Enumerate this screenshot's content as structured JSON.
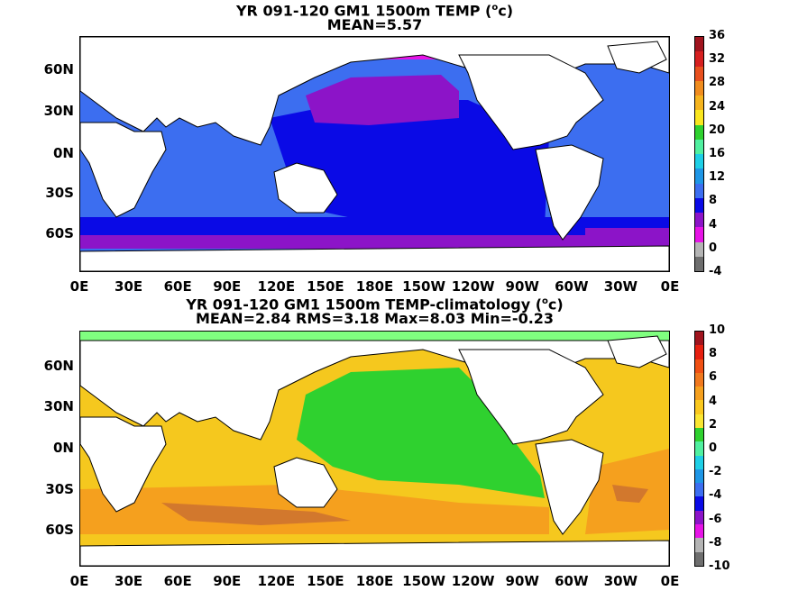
{
  "panels": [
    {
      "title_line1_prefix": "YR 091-120 GM1 1500m TEMP (",
      "title_unit_sup": "o",
      "title_unit_rest": "c)",
      "title_line2": "MEAN=5.57",
      "colorbar_labels": [
        "36",
        "32",
        "28",
        "24",
        "20",
        "16",
        "12",
        "8",
        "4",
        "0",
        "-4"
      ],
      "colorbar_colors": [
        "#a0141e",
        "#d62020",
        "#e8501e",
        "#f08c1e",
        "#f5b41e",
        "#fae61e",
        "#2fd12f",
        "#50f0a0",
        "#1ecfe6",
        "#1e96e6",
        "#3c6ef0",
        "#0a0ae6",
        "#8c14c8",
        "#e614e6",
        "#b4b4b4",
        "#6e6e6e"
      ],
      "colors": {
        "base": "#3c6ef0",
        "deep": "#0a0ae6",
        "north_pacific": "#8c14c8",
        "arctic": "#e614e6",
        "south": "#8c14c8",
        "atlantic_north": "#3c6ef0"
      }
    },
    {
      "title_line1_prefix": "YR 091-120 GM1 1500m TEMP-climatology (",
      "title_unit_sup": "o",
      "title_unit_rest": "c)",
      "title_line2": "MEAN=2.84   RMS=3.18   Max=8.03   Min=-0.23",
      "colorbar_labels": [
        "10",
        "8",
        "6",
        "4",
        "2",
        "0",
        "-2",
        "-4",
        "-6",
        "-8",
        "-10"
      ],
      "colorbar_colors": [
        "#a0141e",
        "#e62010",
        "#f05014",
        "#f0781e",
        "#f5a01e",
        "#fac81e",
        "#fae632",
        "#2fd12f",
        "#50f0a0",
        "#1ecfe6",
        "#1e96e6",
        "#3c6ef0",
        "#0a0ae6",
        "#8c14c8",
        "#e614e6",
        "#b4b4b4",
        "#6e6e6e"
      ],
      "colors": {
        "base": "#f5c81e",
        "warm": "#f5a01e",
        "hot": "#d2782d",
        "pacific": "#2fd12f",
        "arctic": "#80ff80"
      }
    }
  ],
  "lat_labels": [
    "60N",
    "30N",
    "0N",
    "30S",
    "60S"
  ],
  "lon_labels": [
    "0E",
    "30E",
    "60E",
    "90E",
    "120E",
    "150E",
    "180E",
    "150W",
    "120W",
    "90W",
    "60W",
    "30W",
    "0E"
  ]
}
